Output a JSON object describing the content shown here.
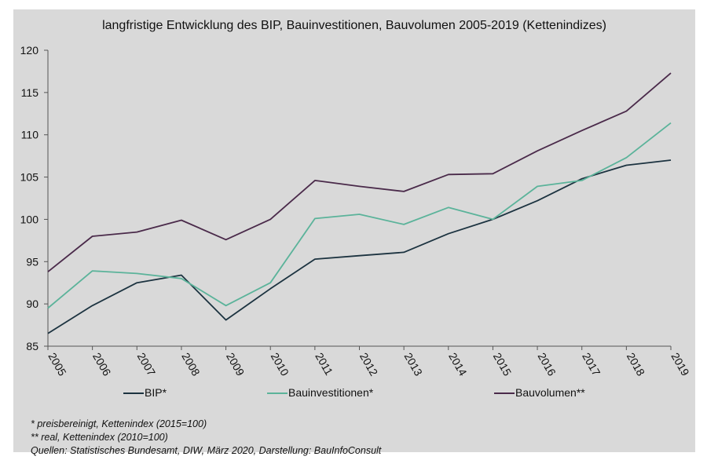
{
  "chart_data": {
    "type": "line",
    "title": "langfristige Entwicklung des BIP, Bauinvestitionen, Bauvolumen 2005-2019 (Kettenindizes)",
    "xlabel": "",
    "ylabel": "",
    "categories": [
      "2005",
      "2006",
      "2007",
      "2008",
      "2009",
      "2010",
      "2011",
      "2012",
      "2013",
      "2014",
      "2015",
      "2016",
      "2017",
      "2018",
      "2019"
    ],
    "ylim": [
      85,
      120
    ],
    "yticks": [
      85,
      90,
      95,
      100,
      105,
      110,
      115,
      120
    ],
    "grid": false,
    "legend_position": "bottom",
    "series": [
      {
        "name": "BIP*",
        "color": "#1c3340",
        "values": [
          86.5,
          89.8,
          92.5,
          93.4,
          88.1,
          91.8,
          95.3,
          95.7,
          96.1,
          98.3,
          100.0,
          102.2,
          104.8,
          106.4,
          107.0
        ]
      },
      {
        "name": "Bauinvestitionen*",
        "color": "#5bb39a",
        "values": [
          89.5,
          93.9,
          93.6,
          93.0,
          89.8,
          92.5,
          100.1,
          100.6,
          99.4,
          101.4,
          100.0,
          103.9,
          104.6,
          107.3,
          111.4
        ]
      },
      {
        "name": "Bauvolumen**",
        "color": "#4a2a4a",
        "values": [
          93.8,
          98.0,
          98.5,
          99.9,
          97.6,
          100.0,
          104.6,
          103.9,
          103.3,
          105.3,
          105.4,
          108.1,
          110.5,
          112.8,
          117.3
        ]
      }
    ]
  },
  "footnotes": {
    "note1": "* preisbereinigt, Kettenindex (2015=100)",
    "note2": "** real, Kettenindex (2010=100)",
    "source": "Quellen: Statistisches Bundesamt, DIW, März 2020, Darstellung: BauInfoConsult"
  }
}
